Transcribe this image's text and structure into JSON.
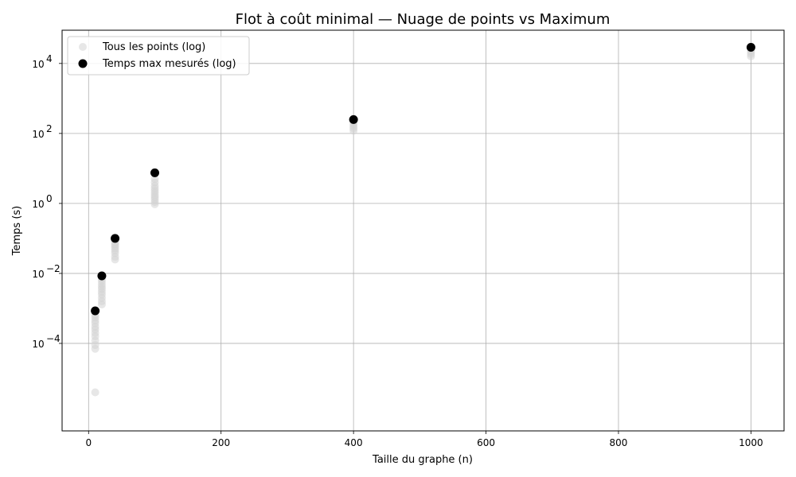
{
  "chart_data": {
    "type": "scatter",
    "title": "Flot à coût minimal — Nuage de points vs Maximum",
    "xlabel": "Taille du graphe (n)",
    "ylabel": "Temps (s)",
    "xlim": [
      -40,
      1050
    ],
    "ylim_log10": [
      -6.5,
      4.95
    ],
    "yscale": "log",
    "grid": true,
    "legend_position": "top-left",
    "x_ticks": [
      0,
      200,
      400,
      600,
      800,
      1000
    ],
    "y_ticks": [
      {
        "exp": -4,
        "base": "10",
        "power": "−4"
      },
      {
        "exp": -2,
        "base": "10",
        "power": "−2"
      },
      {
        "exp": 0,
        "base": "10",
        "power": "0"
      },
      {
        "exp": 2,
        "base": "10",
        "power": "2"
      },
      {
        "exp": 4,
        "base": "10",
        "power": "4"
      }
    ],
    "series": [
      {
        "name": "Tous les points (log)",
        "color": "#d3d3d3",
        "points": [
          [
            10,
            4e-06
          ],
          [
            10,
            7e-05
          ],
          [
            10,
            9e-05
          ],
          [
            10,
            0.00012
          ],
          [
            10,
            0.00016
          ],
          [
            10,
            0.0002
          ],
          [
            10,
            0.00025
          ],
          [
            10,
            0.0003
          ],
          [
            10,
            0.00038
          ],
          [
            10,
            0.00045
          ],
          [
            10,
            0.00055
          ],
          [
            10,
            0.00065
          ],
          [
            20,
            0.0013
          ],
          [
            20,
            0.0016
          ],
          [
            20,
            0.002
          ],
          [
            20,
            0.0025
          ],
          [
            20,
            0.003
          ],
          [
            20,
            0.0036
          ],
          [
            20,
            0.0042
          ],
          [
            20,
            0.005
          ],
          [
            20,
            0.006
          ],
          [
            20,
            0.007
          ],
          [
            40,
            0.025
          ],
          [
            40,
            0.03
          ],
          [
            40,
            0.038
          ],
          [
            40,
            0.045
          ],
          [
            40,
            0.052
          ],
          [
            40,
            0.06
          ],
          [
            40,
            0.068
          ],
          [
            40,
            0.078
          ],
          [
            100,
            0.95
          ],
          [
            100,
            1.1
          ],
          [
            100,
            1.3
          ],
          [
            100,
            1.5
          ],
          [
            100,
            1.7
          ],
          [
            100,
            2.0
          ],
          [
            100,
            2.3
          ],
          [
            100,
            2.7
          ],
          [
            100,
            3.2
          ],
          [
            100,
            4.0
          ],
          [
            100,
            5.0
          ],
          [
            400,
            120
          ],
          [
            400,
            140
          ],
          [
            400,
            160
          ],
          [
            400,
            185
          ],
          [
            400,
            210
          ],
          [
            1000,
            16000
          ],
          [
            1000,
            18500
          ],
          [
            1000,
            21000
          ],
          [
            1000,
            24000
          ]
        ]
      },
      {
        "name": "Temps max mesurés (log)",
        "color": "#000000",
        "points": [
          [
            10,
            0.00085
          ],
          [
            20,
            0.0085
          ],
          [
            40,
            0.1
          ],
          [
            100,
            7.5
          ],
          [
            400,
            250
          ],
          [
            1000,
            29000
          ]
        ]
      }
    ]
  }
}
